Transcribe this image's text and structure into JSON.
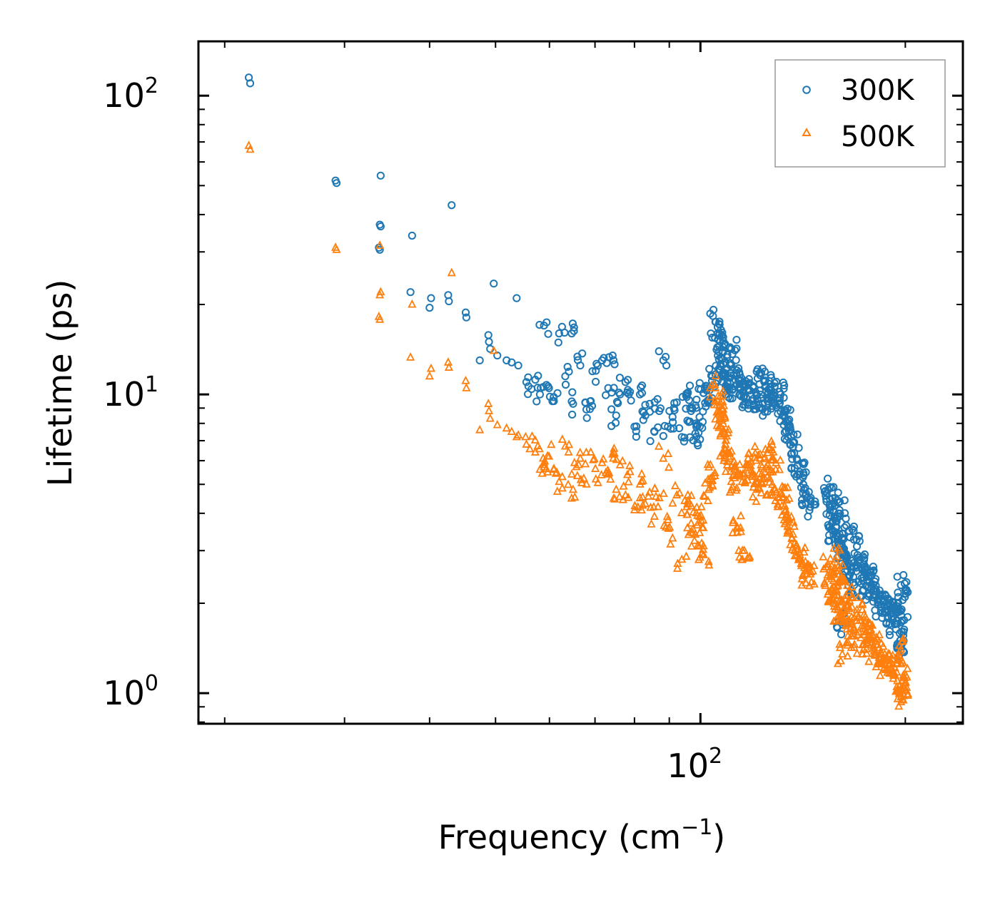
{
  "chart_data": {
    "type": "scatter",
    "title": "",
    "xlabel": "Frequency (cm",
    "xlabel_sup": "−1",
    "xlabel_end": ")",
    "ylabel": "Lifetime (ps)",
    "xscale": "log",
    "yscale": "log",
    "xlim": [
      18.3,
      243
    ],
    "ylim": [
      0.79,
      152
    ],
    "x_major_ticks": [
      {
        "value": 100,
        "base": "10",
        "exp": "2"
      }
    ],
    "y_major_ticks": [
      {
        "value": 1,
        "base": "10",
        "exp": "0"
      },
      {
        "value": 10,
        "base": "10",
        "exp": "1"
      },
      {
        "value": 100,
        "base": "10",
        "exp": "2"
      }
    ],
    "legend_position": "top-right",
    "series": [
      {
        "name": "300K",
        "label": "300K",
        "color": "#1f77b4",
        "marker": "circle",
        "points": [
          [
            21.7,
            115
          ],
          [
            21.8,
            110
          ],
          [
            29.1,
            52
          ],
          [
            29.2,
            51
          ],
          [
            33.9,
            54
          ],
          [
            33.8,
            37
          ],
          [
            33.9,
            36.5
          ],
          [
            33.7,
            31
          ],
          [
            33.8,
            30.5
          ],
          [
            37.5,
            22
          ],
          [
            37.7,
            34
          ],
          [
            40.2,
            21
          ],
          [
            40.0,
            19.5
          ],
          [
            42.6,
            21.5
          ],
          [
            42.7,
            20.5
          ],
          [
            43.1,
            43
          ],
          [
            45.2,
            18.8
          ],
          [
            45.3,
            18.1
          ],
          [
            47.4,
            13
          ],
          [
            48.8,
            15.8
          ],
          [
            48.9,
            15
          ],
          [
            49.1,
            14.2
          ],
          [
            49.7,
            23.5
          ],
          [
            50.3,
            13.5
          ],
          [
            51.9,
            13
          ],
          [
            52.8,
            12.8
          ],
          [
            53.7,
            21
          ],
          [
            54.0,
            12.5
          ],
          [
            55.5,
            11
          ],
          [
            57.2,
            11.2
          ],
          [
            58.1,
            10
          ],
          [
            58.9,
            17
          ],
          [
            59.9,
            10.5
          ],
          [
            60.9,
            9.5
          ],
          [
            62.0,
            16
          ],
          [
            63.3,
            11.5
          ],
          [
            64.7,
            16
          ],
          [
            65.0,
            9.3
          ],
          [
            66.6,
            12.5
          ],
          [
            68.0,
            8.9
          ],
          [
            69.0,
            9.5
          ],
          [
            70.2,
            12
          ],
          [
            71.7,
            13
          ],
          [
            73.2,
            10.5
          ],
          [
            74.3,
            13.5
          ],
          [
            75.2,
            8.5
          ],
          [
            76.2,
            10
          ],
          [
            77.6,
            11
          ],
          [
            78.8,
            10.2
          ],
          [
            80.0,
            7.8
          ],
          [
            81.5,
            10
          ],
          [
            83.0,
            8.5
          ],
          [
            84.2,
            9.3
          ],
          [
            85.6,
            7.5
          ],
          [
            87.0,
            8.8
          ],
          [
            88.2,
            13
          ],
          [
            89.6,
            7.8
          ],
          [
            91.0,
            8.4
          ],
          [
            92.3,
            9.4
          ],
          [
            93.9,
            7.2
          ],
          [
            95.5,
            9.8
          ],
          [
            96.9,
            8.8
          ],
          [
            98.3,
            7.4
          ],
          [
            99.7,
            8.4
          ],
          [
            101.1,
            10.1
          ],
          [
            102.8,
            9.6
          ],
          [
            104.1,
            11.5
          ],
          [
            105.2,
            17.5
          ],
          [
            106.0,
            16
          ],
          [
            106.6,
            14.5
          ],
          [
            107.3,
            13.3
          ],
          [
            108.1,
            12.6
          ],
          [
            108.8,
            11.6
          ],
          [
            109.6,
            10.9
          ],
          [
            110.3,
            10.4
          ],
          [
            111.0,
            14.2
          ],
          [
            112.0,
            11.6
          ],
          [
            113.2,
            10.8
          ],
          [
            114.5,
            10.4
          ],
          [
            116.0,
            9.9
          ],
          [
            117.6,
            10.3
          ],
          [
            119.2,
            9.5
          ],
          [
            121.0,
            9.9
          ],
          [
            122.4,
            11.6
          ],
          [
            123.5,
            9.3
          ],
          [
            124.8,
            10.6
          ],
          [
            126.1,
            10.4
          ],
          [
            127.3,
            9.8
          ],
          [
            129.0,
            9.2
          ],
          [
            130.6,
            10.2
          ],
          [
            132.0,
            8.5
          ],
          [
            133.5,
            8.1
          ],
          [
            135.0,
            7.5
          ],
          [
            136.8,
            6.9
          ],
          [
            138.5,
            6.1
          ],
          [
            140.0,
            5.5
          ],
          [
            141.6,
            5
          ],
          [
            143.3,
            4.5
          ],
          [
            145.0,
            4.2
          ],
          [
            154.0,
            4.8
          ],
          [
            155.0,
            4.1
          ],
          [
            156.0,
            3.7
          ],
          [
            156.9,
            3.4
          ],
          [
            157.8,
            4.5
          ],
          [
            158.5,
            3.6
          ],
          [
            159.3,
            3.2
          ],
          [
            160.1,
            4.1
          ],
          [
            160.7,
            3.1
          ],
          [
            161.6,
            1.7
          ],
          [
            162.6,
            2.9
          ],
          [
            163.9,
            2.7
          ],
          [
            165.3,
            3.5
          ],
          [
            166.8,
            2.6
          ],
          [
            168.2,
            2.3
          ],
          [
            169.8,
            3.1
          ],
          [
            171.4,
            2.8
          ],
          [
            173.0,
            2.2
          ],
          [
            174.8,
            2.6
          ],
          [
            176.5,
            2.45
          ],
          [
            178.2,
            2.3
          ],
          [
            180.0,
            2.2
          ],
          [
            182.0,
            2.05
          ],
          [
            184.0,
            1.95
          ],
          [
            186.5,
            1.95
          ],
          [
            189.0,
            1.9
          ],
          [
            191.0,
            1.8
          ],
          [
            193.0,
            1.7
          ],
          [
            195.0,
            1.9
          ],
          [
            196.5,
            1.5
          ],
          [
            197.0,
            2.3
          ],
          [
            197.3,
            1.45
          ],
          [
            197.8,
            1.75
          ],
          [
            198.2,
            2.05
          ]
        ]
      },
      {
        "name": "500K",
        "label": "500K",
        "color": "#ff7f0e",
        "marker": "triangle",
        "points": [
          [
            21.7,
            68
          ],
          [
            21.8,
            66
          ],
          [
            29.1,
            31
          ],
          [
            29.2,
            30.5
          ],
          [
            33.8,
            31.5
          ],
          [
            33.9,
            22
          ],
          [
            33.8,
            21.5
          ],
          [
            33.7,
            18.2
          ],
          [
            33.8,
            17.8
          ],
          [
            37.5,
            13.3
          ],
          [
            37.7,
            20
          ],
          [
            40.2,
            12.2
          ],
          [
            40.0,
            11.5
          ],
          [
            42.6,
            12.8
          ],
          [
            42.7,
            12.3
          ],
          [
            43.1,
            25.5
          ],
          [
            45.2,
            11.1
          ],
          [
            45.3,
            10.5
          ],
          [
            47.4,
            7.6
          ],
          [
            48.8,
            9.3
          ],
          [
            48.9,
            8.8
          ],
          [
            49.1,
            8.3
          ],
          [
            49.7,
            14
          ],
          [
            50.3,
            7.9
          ],
          [
            51.9,
            7.7
          ],
          [
            52.8,
            7.5
          ],
          [
            53.7,
            7.2
          ],
          [
            54.0,
            7.3
          ],
          [
            55.5,
            6.8
          ],
          [
            57.2,
            6.4
          ],
          [
            58.1,
            5.6
          ],
          [
            58.9,
            5.9
          ],
          [
            59.9,
            6.2
          ],
          [
            60.9,
            5.6
          ],
          [
            62.0,
            5.1
          ],
          [
            63.3,
            6.7
          ],
          [
            64.7,
            5.4
          ],
          [
            65.0,
            4.8
          ],
          [
            66.6,
            6.1
          ],
          [
            68.0,
            5
          ],
          [
            69.0,
            6.4
          ],
          [
            70.2,
            5.2
          ],
          [
            71.7,
            5.9
          ],
          [
            73.2,
            5.4
          ],
          [
            74.3,
            6.3
          ],
          [
            75.2,
            4.8
          ],
          [
            76.2,
            5.8
          ],
          [
            77.6,
            4.6
          ],
          [
            78.8,
            5.5
          ],
          [
            80.0,
            4.1
          ],
          [
            81.5,
            5
          ],
          [
            83.0,
            4.3
          ],
          [
            84.2,
            4.7
          ],
          [
            85.6,
            3.9
          ],
          [
            87.0,
            4.5
          ],
          [
            88.2,
            6.1
          ],
          [
            89.6,
            3.8
          ],
          [
            91.0,
            3.3
          ],
          [
            92.3,
            4.6
          ],
          [
            93.9,
            2.8
          ],
          [
            95.5,
            4.2
          ],
          [
            96.9,
            3.7
          ],
          [
            98.3,
            3.4
          ],
          [
            99.7,
            3.9
          ],
          [
            101.1,
            2.9
          ],
          [
            102.8,
            4.8
          ],
          [
            104.1,
            5.3
          ],
          [
            105.2,
            10.5
          ],
          [
            106.0,
            9.5
          ],
          [
            106.6,
            8.6
          ],
          [
            107.3,
            8.4
          ],
          [
            108.1,
            7.6
          ],
          [
            108.8,
            6.8
          ],
          [
            109.6,
            6.4
          ],
          [
            110.3,
            6.1
          ],
          [
            111.0,
            5.1
          ],
          [
            112.0,
            5.7
          ],
          [
            113.2,
            3.6
          ],
          [
            114.5,
            5.4
          ],
          [
            116.0,
            3.0
          ],
          [
            117.6,
            5.8
          ],
          [
            119.2,
            5.3
          ],
          [
            121.0,
            4.8
          ],
          [
            122.4,
            6.3
          ],
          [
            123.5,
            5.2
          ],
          [
            124.8,
            5.7
          ],
          [
            126.1,
            6.6
          ],
          [
            127.3,
            4.7
          ],
          [
            129.0,
            5.6
          ],
          [
            130.6,
            4.5
          ],
          [
            132.0,
            4.5
          ],
          [
            133.5,
            4.1
          ],
          [
            135.0,
            3.8
          ],
          [
            136.8,
            3.4
          ],
          [
            138.5,
            3.1
          ],
          [
            140.0,
            2.9
          ],
          [
            141.6,
            2.7
          ],
          [
            143.3,
            2.5
          ],
          [
            145.0,
            2.5
          ],
          [
            154.0,
            2.7
          ],
          [
            155.0,
            2.45
          ],
          [
            156.0,
            2.2
          ],
          [
            156.9,
            2.05
          ],
          [
            157.8,
            2.8
          ],
          [
            158.5,
            2.2
          ],
          [
            159.3,
            1.9
          ],
          [
            160.1,
            2.5
          ],
          [
            160.7,
            1.85
          ],
          [
            161.6,
            1.35
          ],
          [
            162.6,
            1.9
          ],
          [
            163.9,
            1.8
          ],
          [
            165.3,
            2.2
          ],
          [
            166.8,
            1.7
          ],
          [
            168.2,
            1.55
          ],
          [
            169.8,
            1.9
          ],
          [
            171.4,
            1.75
          ],
          [
            173.0,
            1.45
          ],
          [
            174.8,
            1.6
          ],
          [
            176.5,
            1.55
          ],
          [
            178.2,
            1.45
          ],
          [
            180.0,
            1.35
          ],
          [
            182.0,
            1.45
          ],
          [
            184.0,
            1.25
          ],
          [
            186.5,
            1.35
          ],
          [
            189.0,
            1.25
          ],
          [
            191.0,
            1.2
          ],
          [
            193.0,
            1.15
          ],
          [
            195.0,
            1.3
          ],
          [
            196.5,
            1.0
          ],
          [
            197.0,
            1.4
          ],
          [
            197.3,
            0.97
          ],
          [
            197.8,
            1.1
          ],
          [
            198.2,
            1.05
          ]
        ]
      }
    ]
  }
}
